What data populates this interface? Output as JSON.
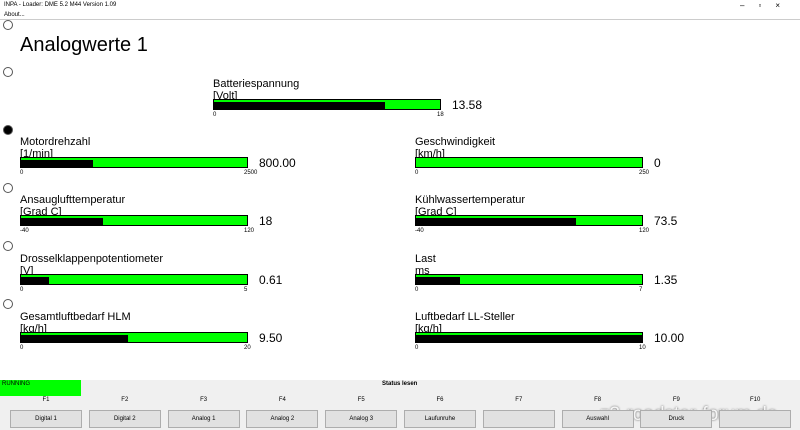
{
  "window": {
    "title": "INPA - Loader: DME 5.2 M44 Version 1.09",
    "menu": [
      "About..."
    ]
  },
  "heading": "Analogwerte 1",
  "gauges": [
    {
      "label": "Batteriespannung",
      "unit": "[Volt]",
      "min": 0,
      "max": 18,
      "value": 13.58
    },
    {
      "label": "Motordrehzahl",
      "unit": "[1/min]",
      "min": 0,
      "max": 2500,
      "value": 800,
      "value_label": "800.00"
    },
    {
      "label": "Geschwindigkeit",
      "unit": "[km/h]",
      "min": 0,
      "max": 250,
      "value": 0
    },
    {
      "label": "Ansauglufttemperatur",
      "unit": "[Grad C]",
      "min": -40,
      "max": 120,
      "value": 18
    },
    {
      "label": "Kühlwassertemperatur",
      "unit": "[Grad C]",
      "min": -40,
      "max": 120,
      "value": 73.5
    },
    {
      "label": "Drosselklappenpotentiometer",
      "unit": "[V]",
      "min": 0,
      "max": 5,
      "value": 0.61
    },
    {
      "label": "Last",
      "unit": "ms",
      "min": 0,
      "max": 7,
      "value": 1.35
    },
    {
      "label": "Gesamtluftbedarf HLM",
      "unit": "[kg/h]",
      "min": 0,
      "max": 20,
      "value": 9.5,
      "value_label": "9.50"
    },
    {
      "label": "Luftbedarf LL-Steller",
      "unit": "[kg/h]",
      "min": 0,
      "max": 10,
      "value": 10,
      "value_label": "10.00"
    }
  ],
  "status": {
    "state": "RUNNING",
    "message": "Status lesen"
  },
  "function_keys": [
    {
      "key": "F1",
      "label": "Digital 1"
    },
    {
      "key": "F2",
      "label": "Digital 2"
    },
    {
      "key": "F3",
      "label": "Analog 1"
    },
    {
      "key": "F4",
      "label": "Analog 2"
    },
    {
      "key": "F5",
      "label": "Analog 3"
    },
    {
      "key": "F6",
      "label": "Laufunruhe"
    },
    {
      "key": "F7",
      "label": null
    },
    {
      "key": "F8",
      "label": "Auswahl"
    },
    {
      "key": "F9",
      "label": "Druck"
    },
    {
      "key": "F10",
      "label": null
    }
  ],
  "watermark": "z3-roadster-forum.de"
}
